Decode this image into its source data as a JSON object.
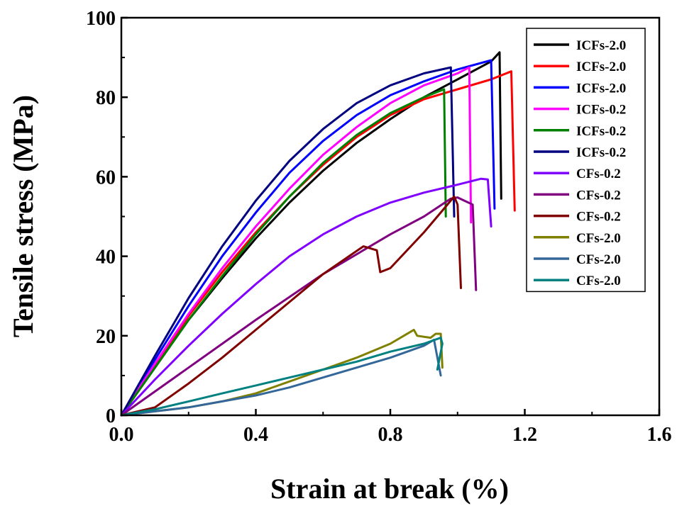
{
  "chart_data": {
    "type": "line",
    "title": "",
    "xlabel": "Strain at break (%)",
    "ylabel": "Tensile stress (MPa)",
    "xlim": [
      0,
      1.6
    ],
    "ylim": [
      0,
      100
    ],
    "xticks": [
      "0.0",
      "0.4",
      "0.8",
      "1.2",
      "1.6"
    ],
    "yticks": [
      "0",
      "20",
      "40",
      "60",
      "80",
      "100"
    ],
    "legend_position": "top-right",
    "grid": false,
    "series": [
      {
        "name": "ICFs-2.0",
        "color": "#000000",
        "points": [
          [
            0,
            0
          ],
          [
            0.1,
            12
          ],
          [
            0.2,
            24
          ],
          [
            0.3,
            34.5
          ],
          [
            0.4,
            44.5
          ],
          [
            0.5,
            53.5
          ],
          [
            0.6,
            61.5
          ],
          [
            0.7,
            68.5
          ],
          [
            0.8,
            74.5
          ],
          [
            0.9,
            80
          ],
          [
            1.0,
            84.5
          ],
          [
            1.1,
            89
          ],
          [
            1.125,
            91.3
          ],
          [
            1.13,
            54.5
          ]
        ]
      },
      {
        "name": "ICFs-2.0",
        "color": "#ff0000",
        "points": [
          [
            0,
            0
          ],
          [
            0.1,
            12.5
          ],
          [
            0.2,
            25
          ],
          [
            0.3,
            36
          ],
          [
            0.4,
            46
          ],
          [
            0.5,
            55
          ],
          [
            0.6,
            63
          ],
          [
            0.7,
            70
          ],
          [
            0.8,
            75.5
          ],
          [
            0.9,
            79.5
          ],
          [
            1.0,
            82
          ],
          [
            1.1,
            84.5
          ],
          [
            1.16,
            86.5
          ],
          [
            1.17,
            51.5
          ]
        ]
      },
      {
        "name": "ICFs-2.0",
        "color": "#0000ff",
        "points": [
          [
            0,
            0
          ],
          [
            0.1,
            14
          ],
          [
            0.2,
            27.5
          ],
          [
            0.3,
            40
          ],
          [
            0.4,
            51
          ],
          [
            0.5,
            61
          ],
          [
            0.6,
            69
          ],
          [
            0.7,
            75.5
          ],
          [
            0.8,
            80.5
          ],
          [
            0.9,
            84
          ],
          [
            1.0,
            87
          ],
          [
            1.1,
            89.3
          ],
          [
            1.11,
            52
          ]
        ]
      },
      {
        "name": "ICFs-0.2",
        "color": "#ff00ff",
        "points": [
          [
            0,
            0
          ],
          [
            0.1,
            13
          ],
          [
            0.2,
            25.5
          ],
          [
            0.3,
            37
          ],
          [
            0.4,
            47.5
          ],
          [
            0.5,
            57
          ],
          [
            0.6,
            65.5
          ],
          [
            0.7,
            72.5
          ],
          [
            0.8,
            78.5
          ],
          [
            0.9,
            83
          ],
          [
            1.0,
            86
          ],
          [
            1.035,
            87.5
          ],
          [
            1.04,
            48.5
          ]
        ]
      },
      {
        "name": "ICFs-0.2",
        "color": "#008000",
        "points": [
          [
            0,
            0
          ],
          [
            0.1,
            12
          ],
          [
            0.2,
            24
          ],
          [
            0.3,
            35
          ],
          [
            0.4,
            45.5
          ],
          [
            0.5,
            55
          ],
          [
            0.6,
            63.5
          ],
          [
            0.7,
            70.5
          ],
          [
            0.8,
            76
          ],
          [
            0.9,
            80
          ],
          [
            0.96,
            82
          ],
          [
            0.965,
            50
          ]
        ]
      },
      {
        "name": "ICFs-0.2",
        "color": "#000080",
        "points": [
          [
            0,
            0
          ],
          [
            0.1,
            15
          ],
          [
            0.2,
            29.5
          ],
          [
            0.3,
            42.5
          ],
          [
            0.4,
            54
          ],
          [
            0.5,
            64
          ],
          [
            0.6,
            72
          ],
          [
            0.7,
            78.5
          ],
          [
            0.8,
            83
          ],
          [
            0.9,
            86
          ],
          [
            0.98,
            87.5
          ],
          [
            0.99,
            50
          ]
        ]
      },
      {
        "name": "CFs-0.2",
        "color": "#8000ff",
        "points": [
          [
            0,
            0
          ],
          [
            0.1,
            9
          ],
          [
            0.2,
            17.5
          ],
          [
            0.3,
            25.5
          ],
          [
            0.4,
            33
          ],
          [
            0.5,
            40
          ],
          [
            0.6,
            45.5
          ],
          [
            0.7,
            50
          ],
          [
            0.8,
            53.5
          ],
          [
            0.9,
            56
          ],
          [
            1.0,
            58
          ],
          [
            1.07,
            59.5
          ],
          [
            1.09,
            59.3
          ],
          [
            1.1,
            47.5
          ]
        ]
      },
      {
        "name": "CFs-0.2",
        "color": "#800080",
        "points": [
          [
            0,
            0
          ],
          [
            0.2,
            12
          ],
          [
            0.4,
            24
          ],
          [
            0.6,
            35.5
          ],
          [
            0.8,
            45.5
          ],
          [
            0.9,
            50
          ],
          [
            0.98,
            54.5
          ],
          [
            1.0,
            54.8
          ],
          [
            1.02,
            54
          ],
          [
            1.045,
            53
          ],
          [
            1.055,
            31.5
          ]
        ]
      },
      {
        "name": "CFs-0.2",
        "color": "#800000",
        "points": [
          [
            0,
            0
          ],
          [
            0.1,
            2
          ],
          [
            0.2,
            8
          ],
          [
            0.3,
            14.5
          ],
          [
            0.4,
            21.5
          ],
          [
            0.5,
            28.5
          ],
          [
            0.6,
            35.5
          ],
          [
            0.72,
            42.5
          ],
          [
            0.76,
            41.5
          ],
          [
            0.77,
            36
          ],
          [
            0.8,
            37
          ],
          [
            0.9,
            46
          ],
          [
            0.95,
            51
          ],
          [
            0.99,
            55
          ],
          [
            1.0,
            53
          ],
          [
            1.01,
            32
          ]
        ]
      },
      {
        "name": "CFs-2.0",
        "color": "#808000",
        "points": [
          [
            0,
            0
          ],
          [
            0.1,
            1
          ],
          [
            0.2,
            2
          ],
          [
            0.3,
            3.5
          ],
          [
            0.4,
            5.5
          ],
          [
            0.5,
            8.5
          ],
          [
            0.6,
            11.5
          ],
          [
            0.7,
            14.5
          ],
          [
            0.8,
            18
          ],
          [
            0.87,
            21.5
          ],
          [
            0.88,
            20
          ],
          [
            0.92,
            19.5
          ],
          [
            0.935,
            20.5
          ],
          [
            0.95,
            20.5
          ],
          [
            0.955,
            12
          ]
        ]
      },
      {
        "name": "CFs-2.0",
        "color": "#336699",
        "points": [
          [
            0,
            0
          ],
          [
            0.1,
            1
          ],
          [
            0.2,
            2
          ],
          [
            0.3,
            3.5
          ],
          [
            0.4,
            5
          ],
          [
            0.5,
            7
          ],
          [
            0.6,
            9.5
          ],
          [
            0.7,
            12
          ],
          [
            0.8,
            14.5
          ],
          [
            0.9,
            17.5
          ],
          [
            0.93,
            19
          ],
          [
            0.95,
            10
          ]
        ]
      },
      {
        "name": "CFs-2.0",
        "color": "#008080",
        "points": [
          [
            0,
            0
          ],
          [
            0.1,
            1.5
          ],
          [
            0.2,
            3.5
          ],
          [
            0.3,
            5.5
          ],
          [
            0.4,
            7.5
          ],
          [
            0.5,
            9.5
          ],
          [
            0.6,
            11.5
          ],
          [
            0.7,
            13.5
          ],
          [
            0.8,
            16
          ],
          [
            0.9,
            18
          ],
          [
            0.95,
            19.5
          ],
          [
            0.955,
            18
          ],
          [
            0.94,
            11.5
          ]
        ]
      }
    ]
  }
}
